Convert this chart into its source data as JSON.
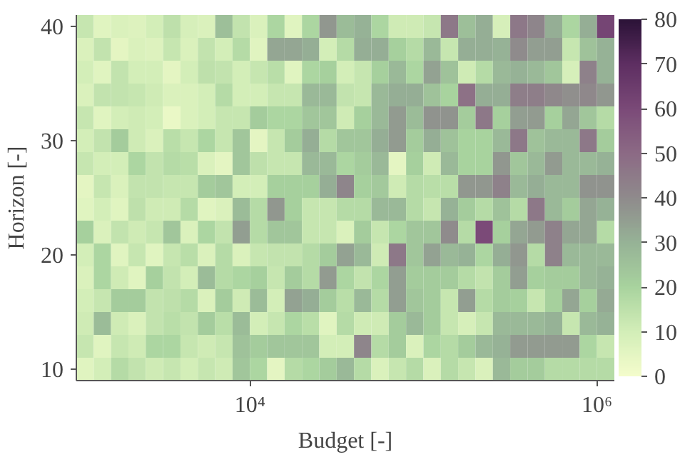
{
  "chart_data": {
    "type": "heatmap",
    "xlabel": "Budget [-]",
    "ylabel": "Horizon [-]",
    "log": "x",
    "x": [
      1122,
      1413,
      1778,
      2239,
      2818,
      3548,
      4467,
      5623,
      7079,
      8913,
      11220,
      14125,
      17783,
      22387,
      28184,
      35481,
      44668,
      56234,
      70795,
      89125,
      112202,
      141254,
      177828,
      223872,
      281838,
      354813,
      446684,
      562341,
      707946,
      891251,
      1122018
    ],
    "y": [
      40,
      38,
      36,
      34,
      32,
      30,
      28,
      26,
      24,
      22,
      20,
      18,
      16,
      14,
      12,
      10
    ],
    "xlim": [
      1000,
      1258925
    ],
    "ylim": [
      9,
      41
    ],
    "xticks": [
      {
        "value": 10000,
        "label": "10⁴"
      },
      {
        "value": 1000000,
        "label": "10⁶"
      }
    ],
    "yticks": [
      10,
      20,
      30,
      40
    ],
    "clim": [
      0,
      80
    ],
    "cticks": [
      0,
      10,
      20,
      30,
      40,
      50,
      60,
      70,
      80
    ],
    "grid": false,
    "cells": [
      [
        13,
        6,
        8,
        7,
        10,
        15,
        9,
        8,
        26,
        14,
        8,
        19,
        6,
        19,
        37,
        27,
        30,
        19,
        11,
        11,
        13,
        46,
        26,
        31,
        9,
        46,
        42,
        31,
        19,
        31,
        62
      ],
      [
        8,
        14,
        5,
        8,
        7,
        13,
        8,
        14,
        10,
        17,
        6,
        33,
        33,
        31,
        10,
        17,
        31,
        31,
        21,
        17,
        28,
        13,
        31,
        31,
        30,
        40,
        35,
        35,
        13,
        25,
        30
      ],
      [
        10,
        6,
        14,
        10,
        10,
        5,
        10,
        15,
        14,
        10,
        13,
        16,
        6,
        19,
        21,
        10,
        13,
        21,
        28,
        19,
        34,
        25,
        11,
        17,
        28,
        30,
        28,
        24,
        9,
        43,
        30
      ],
      [
        8,
        14,
        14,
        13,
        11,
        8,
        8,
        10,
        17,
        10,
        10,
        13,
        13,
        28,
        28,
        14,
        13,
        28,
        31,
        31,
        25,
        20,
        48,
        31,
        31,
        44,
        44,
        41,
        39,
        41,
        37
      ],
      [
        13,
        6,
        10,
        11,
        10,
        3,
        8,
        10,
        13,
        13,
        22,
        19,
        19,
        24,
        24,
        11,
        21,
        28,
        36,
        27,
        38,
        38,
        22,
        46,
        21,
        35,
        36,
        21,
        33,
        24,
        17
      ],
      [
        10,
        14,
        22,
        11,
        8,
        16,
        13,
        19,
        13,
        24,
        5,
        13,
        22,
        31,
        17,
        24,
        24,
        31,
        36,
        22,
        31,
        25,
        20,
        20,
        28,
        46,
        25,
        28,
        28,
        46,
        22
      ],
      [
        13,
        10,
        10,
        19,
        14,
        17,
        16,
        8,
        5,
        24,
        15,
        13,
        13,
        28,
        28,
        19,
        22,
        28,
        5,
        21,
        11,
        28,
        20,
        20,
        37,
        24,
        28,
        36,
        28,
        28,
        30
      ],
      [
        5,
        13,
        8,
        14,
        14,
        13,
        13,
        22,
        24,
        10,
        10,
        21,
        21,
        21,
        31,
        42,
        21,
        23,
        11,
        17,
        16,
        16,
        37,
        37,
        43,
        28,
        31,
        28,
        28,
        38,
        38
      ],
      [
        6,
        10,
        6,
        15,
        11,
        11,
        17,
        6,
        8,
        27,
        17,
        37,
        21,
        13,
        13,
        17,
        17,
        28,
        28,
        17,
        13,
        30,
        22,
        17,
        25,
        17,
        46,
        28,
        22,
        33,
        30
      ],
      [
        21,
        8,
        14,
        11,
        13,
        24,
        8,
        19,
        14,
        35,
        17,
        24,
        24,
        13,
        13,
        8,
        22,
        13,
        19,
        24,
        24,
        40,
        17,
        60,
        21,
        33,
        36,
        43,
        33,
        33,
        17
      ],
      [
        10,
        19,
        6,
        13,
        6,
        13,
        16,
        8,
        17,
        8,
        13,
        14,
        14,
        17,
        22,
        34,
        28,
        11,
        46,
        24,
        34,
        28,
        30,
        19,
        31,
        37,
        17,
        43,
        28,
        28,
        28
      ],
      [
        8,
        19,
        11,
        6,
        21,
        14,
        10,
        27,
        17,
        19,
        21,
        13,
        22,
        17,
        36,
        19,
        14,
        19,
        35,
        22,
        22,
        22,
        17,
        14,
        22,
        35,
        21,
        22,
        22,
        28,
        30
      ],
      [
        10,
        13,
        22,
        22,
        14,
        15,
        17,
        8,
        22,
        11,
        27,
        10,
        34,
        31,
        22,
        16,
        28,
        17,
        35,
        24,
        22,
        13,
        35,
        17,
        22,
        21,
        13,
        21,
        33,
        21,
        32
      ],
      [
        11,
        27,
        11,
        8,
        14,
        16,
        14,
        22,
        16,
        27,
        10,
        13,
        19,
        16,
        6,
        17,
        11,
        11,
        22,
        28,
        22,
        13,
        9,
        13,
        28,
        28,
        28,
        30,
        13,
        28,
        30
      ],
      [
        13,
        6,
        13,
        11,
        19,
        19,
        13,
        11,
        13,
        25,
        22,
        24,
        24,
        24,
        10,
        10,
        42,
        17,
        22,
        8,
        19,
        17,
        22,
        28,
        30,
        36,
        36,
        36,
        36,
        19,
        13
      ],
      [
        6,
        10,
        17,
        14,
        11,
        13,
        10,
        13,
        11,
        24,
        19,
        5,
        17,
        19,
        22,
        28,
        17,
        8,
        13,
        17,
        8,
        17,
        13,
        8,
        28,
        22,
        22,
        17,
        17,
        17,
        17
      ]
    ]
  }
}
